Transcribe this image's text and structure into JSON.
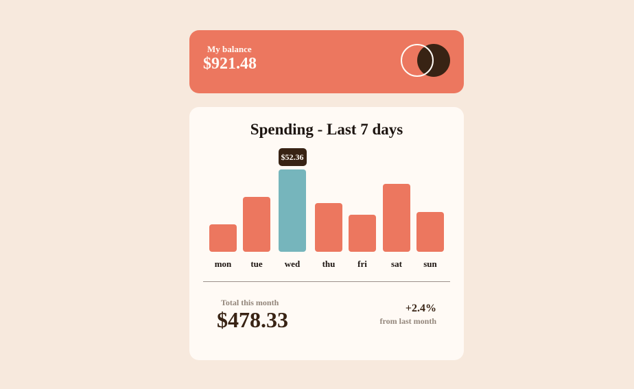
{
  "balance": {
    "label": "My balance",
    "value": "$921.48"
  },
  "spending": {
    "title": "Spending - Last 7 days",
    "total_label": "Total this month",
    "total_value": "$478.33",
    "change_value": "+2.4%",
    "change_label": "from last month"
  },
  "colors": {
    "bar": "#ec775f",
    "bar_active": "#76b5bc",
    "tooltip_bg": "#382314"
  },
  "chart_data": {
    "type": "bar",
    "title": "Spending - Last 7 days",
    "categories": [
      "mon",
      "tue",
      "wed",
      "thu",
      "fri",
      "sat",
      "sun"
    ],
    "values": [
      17.45,
      34.91,
      52.36,
      31.07,
      23.39,
      43.28,
      25.48
    ],
    "highlighted": "wed",
    "tooltip": "$52.36",
    "xlabel": "",
    "ylabel": "",
    "grid": false
  }
}
